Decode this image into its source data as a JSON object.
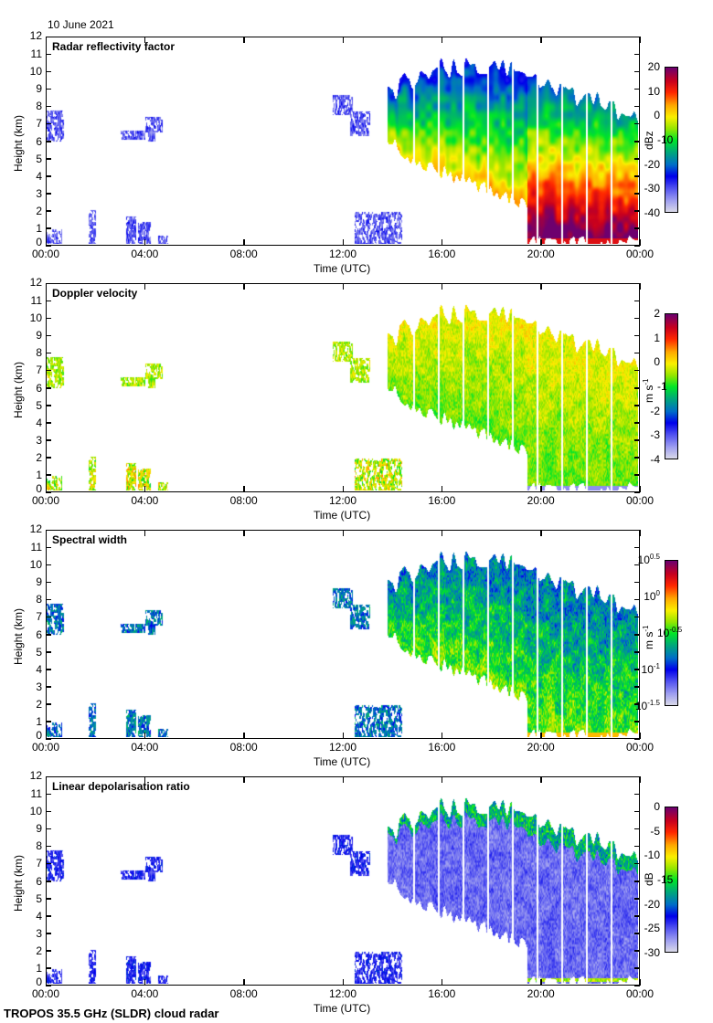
{
  "date_label": "10 June 2021",
  "footer": "TROPOS 35.5 GHz (SLDR) cloud radar",
  "chart_data": [
    {
      "type": "heatmap",
      "title": "Radar reflectivity factor",
      "xlabel": "Time (UTC)",
      "ylabel": "Height (km)",
      "xlim": [
        0,
        24
      ],
      "ylim": [
        0,
        12
      ],
      "xticks": [
        "00:00",
        "04:00",
        "08:00",
        "12:00",
        "16:00",
        "20:00",
        "00:00"
      ],
      "yticks": [
        "0",
        "1",
        "2",
        "3",
        "4",
        "5",
        "6",
        "7",
        "8",
        "9",
        "10",
        "11",
        "12"
      ],
      "colorbar": {
        "label": "dBz",
        "range": [
          -40,
          20
        ],
        "ticks": [
          "20",
          "10",
          "0",
          "-10",
          "-20",
          "-30",
          "-40"
        ]
      },
      "variable": "Z"
    },
    {
      "type": "heatmap",
      "title": "Doppler velocity",
      "xlabel": "Time (UTC)",
      "ylabel": "Height (km)",
      "xlim": [
        0,
        24
      ],
      "ylim": [
        0,
        12
      ],
      "xticks": [
        "00:00",
        "04:00",
        "08:00",
        "12:00",
        "16:00",
        "20:00",
        "00:00"
      ],
      "yticks": [
        "0",
        "1",
        "2",
        "3",
        "4",
        "5",
        "6",
        "7",
        "8",
        "9",
        "10",
        "11",
        "12"
      ],
      "colorbar": {
        "label": "m s",
        "label_sup": "-1",
        "range": [
          -4,
          2
        ],
        "ticks": [
          "2",
          "1",
          "0",
          "-1",
          "-2",
          "-3",
          "-4"
        ]
      },
      "variable": "v"
    },
    {
      "type": "heatmap",
      "title": "Spectral width",
      "xlabel": "Time (UTC)",
      "ylabel": "Height (km)",
      "xlim": [
        0,
        24
      ],
      "ylim": [
        0,
        12
      ],
      "xticks": [
        "00:00",
        "04:00",
        "08:00",
        "12:00",
        "16:00",
        "20:00",
        "00:00"
      ],
      "yticks": [
        "0",
        "1",
        "2",
        "3",
        "4",
        "5",
        "6",
        "7",
        "8",
        "9",
        "10",
        "11",
        "12"
      ],
      "colorbar": {
        "label": "m s",
        "label_sup": "-1",
        "range": [
          -1.5,
          0.5
        ],
        "scale": "log10",
        "ticks": [
          {
            "base": "10",
            "exp": "0.5"
          },
          {
            "base": "10",
            "exp": "0"
          },
          {
            "base": "10",
            "exp": "-0.5"
          },
          {
            "base": "10",
            "exp": "-1"
          },
          {
            "base": "10",
            "exp": "-1.5"
          }
        ]
      },
      "variable": "width"
    },
    {
      "type": "heatmap",
      "title": "Linear depolarisation ratio",
      "xlabel": "Time (UTC)",
      "ylabel": "Height (km)",
      "xlim": [
        0,
        24
      ],
      "ylim": [
        0,
        12
      ],
      "xticks": [
        "00:00",
        "04:00",
        "08:00",
        "12:00",
        "16:00",
        "20:00",
        "00:00"
      ],
      "yticks": [
        "0",
        "1",
        "2",
        "3",
        "4",
        "5",
        "6",
        "7",
        "8",
        "9",
        "10",
        "11",
        "12"
      ],
      "colorbar": {
        "label": "dB",
        "range": [
          -30,
          0
        ],
        "ticks": [
          "0",
          "-5",
          "-10",
          "-15",
          "-20",
          "-25",
          "-30"
        ]
      },
      "variable": "ldr"
    }
  ],
  "data_gaps_utc_hours": [
    14.9,
    15.9,
    16.9,
    17.9,
    18.9,
    19.9,
    20.9,
    21.9,
    22.9
  ]
}
